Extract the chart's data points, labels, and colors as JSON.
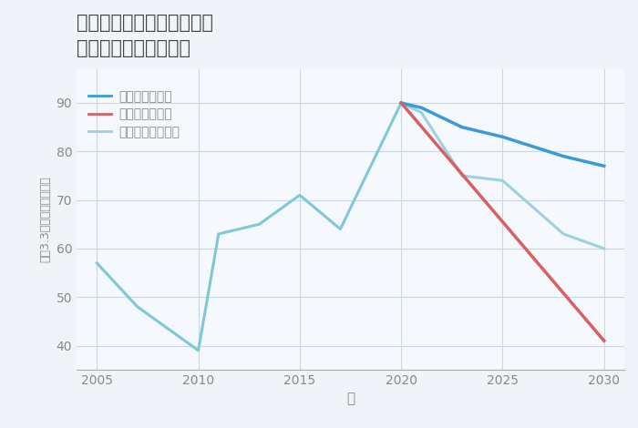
{
  "title": "千葉県香取郡多古町飯笹の\n中古戸建ての価格推移",
  "xlabel": "年",
  "ylabel": "平（3.3㎡）単価（万円）",
  "background_color": "#f0f4f8",
  "plot_bg_color": "#f5f8fc",
  "grid_color": "#c8d8e8",
  "historical": {
    "years": [
      2005,
      2007,
      2010,
      2011,
      2013,
      2015,
      2017,
      2020
    ],
    "values": [
      57,
      48,
      39,
      63,
      65,
      71,
      64,
      90
    ],
    "color": "#7ec8d8",
    "linewidth": 2.2
  },
  "good_scenario": {
    "years": [
      2020,
      2021,
      2023,
      2024,
      2025,
      2028,
      2030
    ],
    "values": [
      90,
      89,
      85,
      84,
      83,
      79,
      77
    ],
    "color": "#3a9ad9",
    "linewidth": 2.5,
    "label": "グッドシナリオ"
  },
  "bad_scenario": {
    "years": [
      2020,
      2030
    ],
    "values": [
      90,
      41
    ],
    "color": "#d96060",
    "linewidth": 2.5,
    "label": "バッドシナリオ"
  },
  "normal_scenario": {
    "years": [
      2020,
      2021,
      2023,
      2025,
      2028,
      2030
    ],
    "values": [
      90,
      88,
      75,
      74,
      63,
      60
    ],
    "color": "#9dd0e0",
    "linewidth": 2.2,
    "label": "ノーマルシナリオ"
  },
  "xlim": [
    2004,
    2031
  ],
  "ylim": [
    35,
    97
  ],
  "xticks": [
    2005,
    2010,
    2015,
    2020,
    2025,
    2030
  ],
  "yticks": [
    40,
    50,
    60,
    70,
    80,
    90
  ],
  "title_color": "#444444",
  "axis_color": "#aaaaaa",
  "tick_color": "#888888"
}
